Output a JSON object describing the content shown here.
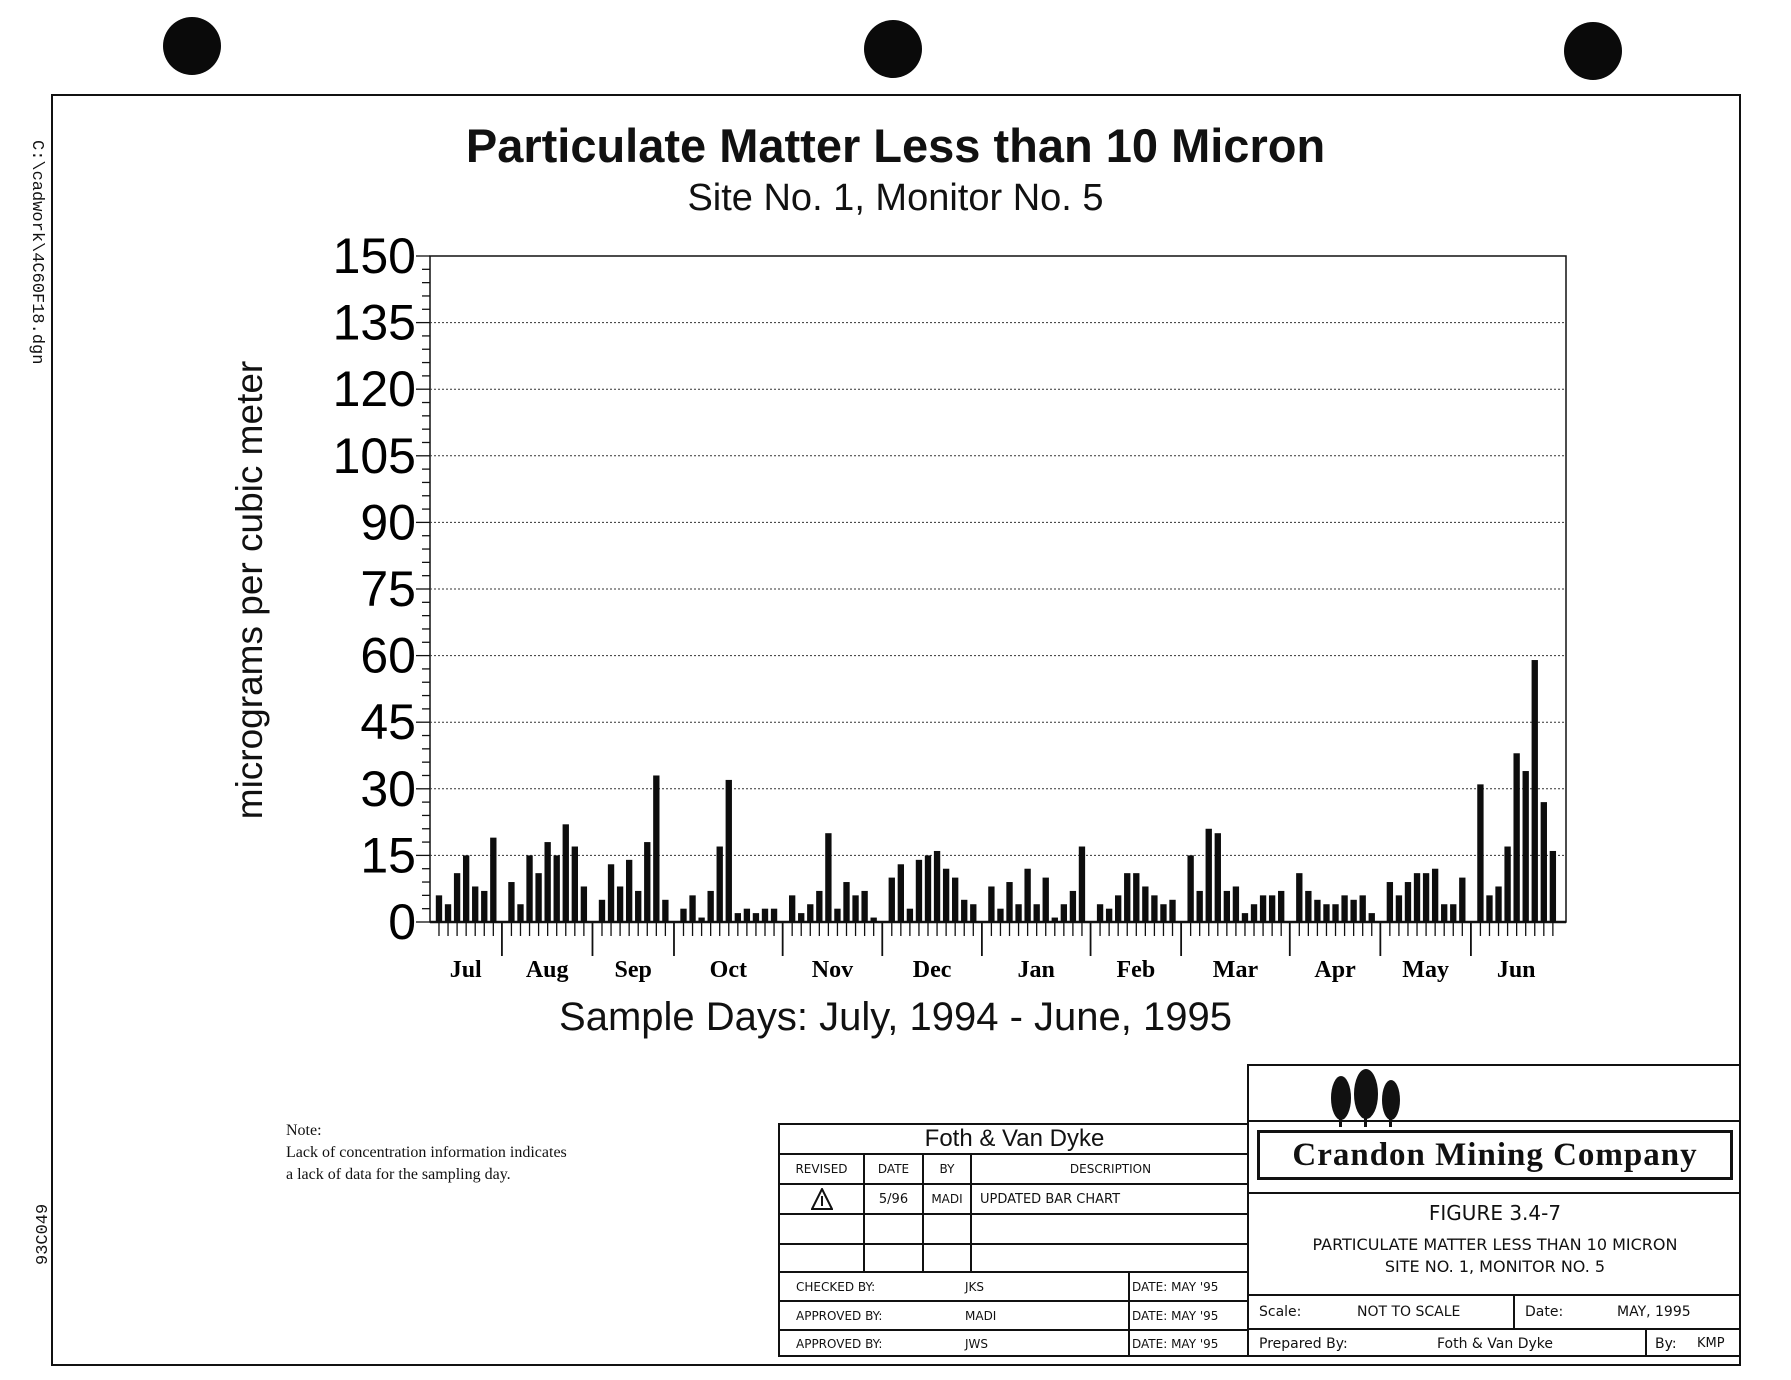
{
  "side_text": {
    "file": "C:\\cadwork\\4C60F18.dgn",
    "code": "93C049"
  },
  "note": {
    "heading": "Note:",
    "line1": "Lack of concentration information indicates",
    "line2": "a lack of data for the sampling day."
  },
  "chart_data": {
    "type": "bar",
    "title": "Particulate Matter Less than 10 Micron",
    "subtitle": "Site No. 1, Monitor No. 5",
    "xlabel": "Sample Days: July, 1994 - June, 1995",
    "ylabel": "micrograms per cubic meter",
    "ylim": [
      0,
      150
    ],
    "yticks": [
      0,
      15,
      30,
      45,
      60,
      75,
      90,
      105,
      120,
      135,
      150
    ],
    "grid": true,
    "months": [
      {
        "label": "Jul",
        "values": [
          6,
          4,
          11,
          15,
          8,
          7,
          19
        ]
      },
      {
        "label": "Aug",
        "values": [
          9,
          4,
          15,
          11,
          18,
          15,
          22,
          17,
          8
        ]
      },
      {
        "label": "Sep",
        "values": [
          5,
          13,
          8,
          14,
          7,
          18,
          33,
          5
        ]
      },
      {
        "label": "Oct",
        "values": [
          3,
          6,
          1,
          7,
          17,
          32,
          2,
          3,
          2,
          3,
          3
        ]
      },
      {
        "label": "Nov",
        "values": [
          6,
          2,
          4,
          7,
          20,
          3,
          9,
          6,
          7,
          1
        ]
      },
      {
        "label": "Dec",
        "values": [
          10,
          13,
          3,
          14,
          15,
          16,
          12,
          10,
          5,
          4
        ]
      },
      {
        "label": "Jan",
        "values": [
          8,
          3,
          9,
          4,
          12,
          4,
          10,
          1,
          4,
          7,
          17
        ]
      },
      {
        "label": "Feb",
        "values": [
          4,
          3,
          6,
          11,
          11,
          8,
          6,
          4,
          5
        ]
      },
      {
        "label": "Mar",
        "values": [
          15,
          7,
          21,
          20,
          7,
          8,
          2,
          4,
          6,
          6,
          7
        ]
      },
      {
        "label": "Apr",
        "values": [
          11,
          7,
          5,
          4,
          4,
          6,
          5,
          6,
          2
        ]
      },
      {
        "label": "May",
        "values": [
          9,
          6,
          9,
          11,
          11,
          12,
          4,
          4,
          10
        ]
      },
      {
        "label": "Jun",
        "values": [
          31,
          6,
          8,
          17,
          38,
          34,
          59,
          27,
          16
        ]
      }
    ]
  },
  "title_block": {
    "firm": "Foth & Van Dyke",
    "headers": {
      "revised": "REVISED",
      "date": "DATE",
      "by": "BY",
      "description": "DESCRIPTION"
    },
    "revision": {
      "mark": "1",
      "date": "5/96",
      "by": "MADI",
      "description": "UPDATED BAR CHART"
    },
    "checked": {
      "label": "CHECKED BY:",
      "name": "JKS",
      "date": "DATE: MAY '95"
    },
    "approved1": {
      "label": "APPROVED BY:",
      "name": "MADI",
      "date": "DATE: MAY '95"
    },
    "approved2": {
      "label": "APPROVED BY:",
      "name": "JWS",
      "date": "DATE: MAY '95"
    },
    "company": "Crandon Mining Company",
    "figure": "FIGURE 3.4-7",
    "figure_title1": "PARTICULATE MATTER LESS THAN 10 MICRON",
    "figure_title2": "SITE NO. 1, MONITOR NO. 5",
    "scale_label": "Scale:",
    "scale": "NOT TO SCALE",
    "date_label": "Date:",
    "date": "MAY, 1995",
    "prepared_label": "Prepared By:",
    "prepared": "Foth & Van Dyke",
    "by_label": "By:",
    "by": "KMP"
  }
}
